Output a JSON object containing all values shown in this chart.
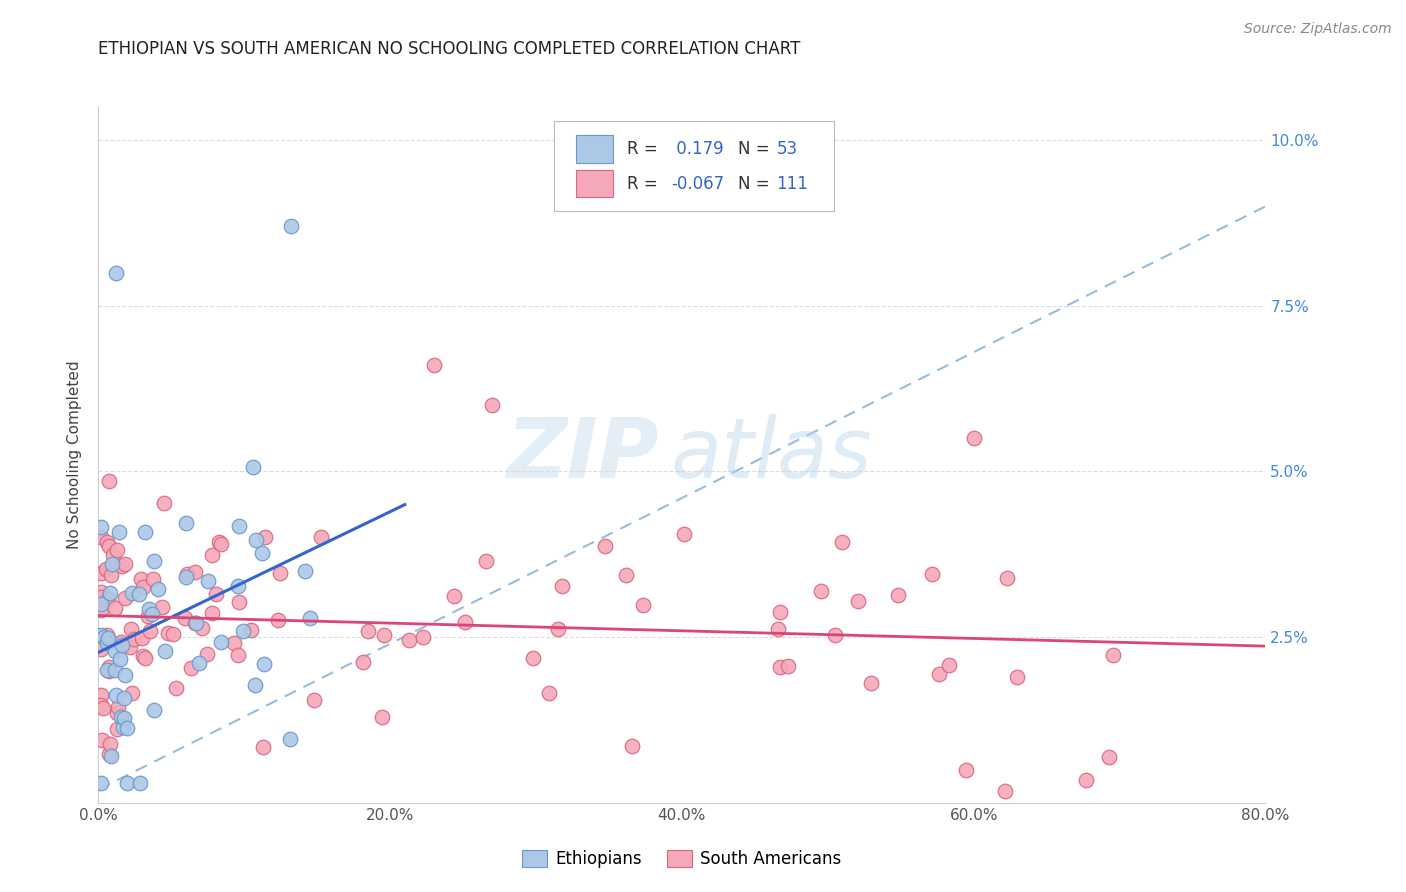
{
  "title": "ETHIOPIAN VS SOUTH AMERICAN NO SCHOOLING COMPLETED CORRELATION CHART",
  "source": "Source: ZipAtlas.com",
  "ylabel": "No Schooling Completed",
  "xlim": [
    0.0,
    0.8
  ],
  "ylim": [
    -0.005,
    0.108
  ],
  "plot_ylim": [
    0.0,
    0.105
  ],
  "xtick_vals": [
    0.0,
    0.2,
    0.4,
    0.6,
    0.8
  ],
  "xticklabels": [
    "0.0%",
    "20.0%",
    "40.0%",
    "60.0%",
    "80.0%"
  ],
  "ytick_vals": [
    0.025,
    0.05,
    0.075,
    0.1
  ],
  "yticklabels": [
    "2.5%",
    "5.0%",
    "7.5%",
    "10.0%"
  ],
  "ethiopian_color": "#adc8e6",
  "ethiopian_edge": "#6699cc",
  "south_american_color": "#f5a8b8",
  "south_american_edge": "#d96880",
  "dashed_line_color": "#99bbdd",
  "blue_line_color": "#3366cc",
  "pink_line_color": "#dd4477",
  "R_eth": 0.179,
  "N_eth": 53,
  "R_sa": -0.067,
  "N_sa": 111,
  "watermark_zip": "ZIP",
  "watermark_atlas": "atlas",
  "background_color": "#ffffff",
  "grid_color": "#dddddd",
  "title_color": "#222222",
  "ytick_color": "#4488dd",
  "xtick_color": "#555555",
  "legend_R_label_color": "#333333",
  "legend_val_color": "#3366cc"
}
